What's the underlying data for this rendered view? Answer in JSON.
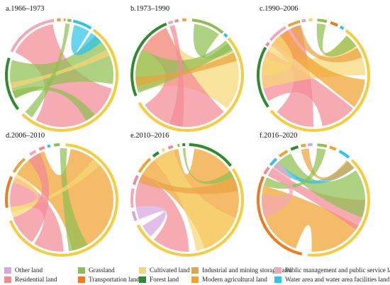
{
  "palette": {
    "other": "#d5a6df",
    "grassland": "#8fbf52",
    "cultivated": "#f7d774",
    "industrial": "#e9a341",
    "public": "#f4a7b4",
    "residential": "#f28a96",
    "transport": "#ef7a22",
    "forest": "#2e8b2e",
    "modern": "#f0a22f",
    "water": "#2fc3e8",
    "cultivated_ring": "#f4cd40"
  },
  "panels": [
    {
      "title": "a.1966–1973"
    },
    {
      "title": "b.1973–1990"
    },
    {
      "title": "c.1990–2006"
    },
    {
      "title": "d.2006–2010"
    },
    {
      "title": "e.2010–2016"
    },
    {
      "title": "f.2016–2020"
    }
  ],
  "legend": [
    {
      "key": "other",
      "label": "Other land"
    },
    {
      "key": "grassland",
      "label": "Grassland"
    },
    {
      "key": "cultivated",
      "label": "Cultivated land"
    },
    {
      "key": "industrial",
      "label": "Industrial and mining storage land"
    },
    {
      "key": "public",
      "label": "Public management and public service land"
    },
    {
      "key": "residential",
      "label": "Residential land"
    },
    {
      "key": "transport",
      "label": "Transportation land"
    },
    {
      "key": "forest",
      "label": "Forest land"
    },
    {
      "key": "modern",
      "label": "Modern agricultural land"
    },
    {
      "key": "water",
      "label": "Water area and water area facilities land"
    }
  ]
}
